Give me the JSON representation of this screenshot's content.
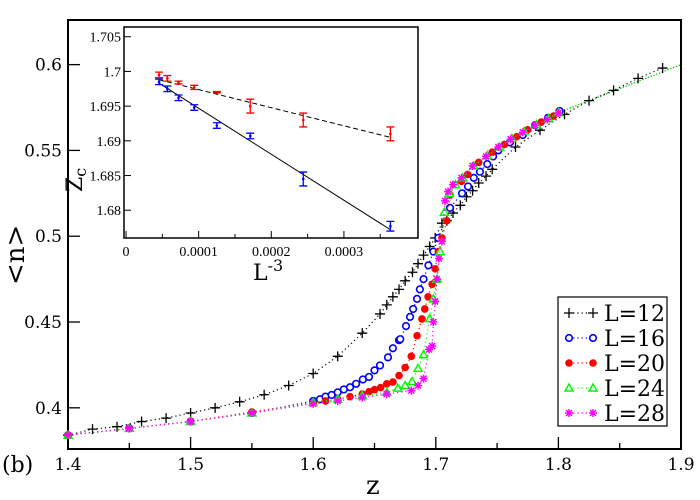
{
  "chart_data": [
    {
      "type": "scatter",
      "panel_label": "(b)",
      "xlabel": "z",
      "ylabel": "<n>",
      "xlim": [
        1.4,
        1.9
      ],
      "ylim": [
        0.376,
        0.626
      ],
      "xticks": [
        "1.4",
        "1.5",
        "1.6",
        "1.7",
        "1.8",
        "1.9"
      ],
      "xtick_values": [
        1.4,
        1.5,
        1.6,
        1.7,
        1.8,
        1.9
      ],
      "yticks": [
        "0.4",
        "0.45",
        "0.5",
        "0.55",
        "0.6"
      ],
      "ytick_values": [
        0.4,
        0.45,
        0.5,
        0.55,
        0.6
      ],
      "legend_position": "bottom-right",
      "series": [
        {
          "name": "L=12",
          "color": "#000000",
          "marker": "plus",
          "x": [
            1.4,
            1.42,
            1.44,
            1.46,
            1.48,
            1.5,
            1.52,
            1.54,
            1.56,
            1.58,
            1.6,
            1.62,
            1.64,
            1.6545,
            1.66,
            1.665,
            1.67,
            1.675,
            1.681,
            1.6855,
            1.69,
            1.695,
            1.6995,
            1.705,
            1.709,
            1.714,
            1.72,
            1.725,
            1.73,
            1.735,
            1.741,
            1.746,
            1.765,
            1.785,
            1.805,
            1.825,
            1.845,
            1.865,
            1.885
          ],
          "y": [
            0.384,
            0.3876,
            0.389,
            0.392,
            0.394,
            0.397,
            0.4,
            0.4035,
            0.4076,
            0.413,
            0.42,
            0.43,
            0.4435,
            0.4547,
            0.46,
            0.4647,
            0.469,
            0.474,
            0.479,
            0.484,
            0.489,
            0.494,
            0.499,
            0.5076,
            0.509,
            0.5135,
            0.518,
            0.523,
            0.5265,
            0.531,
            0.535,
            0.539,
            0.552,
            0.5618,
            0.571,
            0.579,
            0.585,
            0.592,
            0.598
          ]
        },
        {
          "name": "L=16",
          "color": "#0000ff",
          "marker": "circle-open",
          "x": [
            1.4,
            1.45,
            1.5,
            1.55,
            1.6,
            1.6055,
            1.61,
            1.615,
            1.62,
            1.625,
            1.63,
            1.635,
            1.6405,
            1.6455,
            1.65,
            1.6545,
            1.661,
            1.665,
            1.67,
            1.671,
            1.6757,
            1.679,
            1.6815,
            1.6847,
            1.687,
            1.69,
            1.694,
            1.698,
            1.702,
            1.7116,
            1.7214,
            1.7263,
            1.731,
            1.736,
            1.742,
            1.7467,
            1.751,
            1.7605,
            1.771,
            1.781,
            1.7915,
            1.801
          ],
          "y": [
            0.384,
            0.388,
            0.392,
            0.397,
            0.404,
            0.405,
            0.4065,
            0.4075,
            0.409,
            0.4107,
            0.412,
            0.414,
            0.4165,
            0.418,
            0.4218,
            0.4247,
            0.4294,
            0.4347,
            0.4394,
            0.44,
            0.4476,
            0.453,
            0.4576,
            0.4635,
            0.469,
            0.475,
            0.483,
            0.491,
            0.499,
            0.5165,
            0.525,
            0.529,
            0.534,
            0.5376,
            0.542,
            0.5465,
            0.55,
            0.5547,
            0.559,
            0.5647,
            0.569,
            0.573
          ]
        },
        {
          "name": "L=20",
          "color": "#ff0000",
          "marker": "circle-filled",
          "x": [
            1.4,
            1.45,
            1.5,
            1.55,
            1.6,
            1.61,
            1.62,
            1.63,
            1.64,
            1.6455,
            1.65,
            1.655,
            1.66,
            1.665,
            1.67,
            1.675,
            1.68,
            1.6847,
            1.6887,
            1.691,
            1.6937,
            1.697,
            1.6995,
            1.702,
            1.705,
            1.709,
            1.7116,
            1.7156,
            1.721,
            1.726,
            1.735,
            1.746,
            1.756,
            1.766,
            1.775,
            1.786,
            1.796
          ],
          "y": [
            0.384,
            0.388,
            0.392,
            0.3976,
            0.403,
            0.404,
            0.405,
            0.4065,
            0.408,
            0.4094,
            0.4106,
            0.4118,
            0.414,
            0.415,
            0.4188,
            0.4235,
            0.43,
            0.442,
            0.4518,
            0.4576,
            0.4647,
            0.472,
            0.481,
            0.491,
            0.499,
            0.509,
            0.524,
            0.53,
            0.532,
            0.536,
            0.543,
            0.549,
            0.5535,
            0.558,
            0.562,
            0.5665,
            0.57
          ]
        },
        {
          "name": "L=24",
          "color": "#00ff00",
          "marker": "triangle-open",
          "x": [
            1.4,
            1.45,
            1.5,
            1.55,
            1.6,
            1.62,
            1.64,
            1.66,
            1.669,
            1.675,
            1.6806,
            1.6855,
            1.69,
            1.695,
            1.698,
            1.701,
            1.7035,
            1.707,
            1.711,
            1.716,
            1.722,
            1.731,
            1.742,
            1.752,
            1.762,
            1.772,
            1.782,
            1.792,
            1.8
          ],
          "y": [
            0.384,
            0.388,
            0.392,
            0.397,
            0.403,
            0.405,
            0.407,
            0.409,
            0.4115,
            0.413,
            0.4153,
            0.423,
            0.431,
            0.452,
            0.4635,
            0.475,
            0.491,
            0.514,
            0.525,
            0.53,
            0.534,
            0.541,
            0.547,
            0.552,
            0.557,
            0.561,
            0.565,
            0.5685,
            0.572
          ]
        },
        {
          "name": "L=28",
          "color": "#ff00ff",
          "marker": "asterisk",
          "x": [
            1.4,
            1.45,
            1.5,
            1.55,
            1.6,
            1.62,
            1.64,
            1.66,
            1.68,
            1.6855,
            1.69,
            1.6945,
            1.697,
            1.698,
            1.6995,
            1.701,
            1.7025,
            1.705,
            1.7075,
            1.71,
            1.714,
            1.721,
            1.73,
            1.741,
            1.751,
            1.761,
            1.771,
            1.781,
            1.791,
            1.8
          ],
          "y": [
            0.384,
            0.388,
            0.392,
            0.397,
            0.4024,
            0.404,
            0.406,
            0.408,
            0.41,
            0.413,
            0.417,
            0.434,
            0.436,
            0.45,
            0.462,
            0.475,
            0.487,
            0.497,
            0.5206,
            0.526,
            0.53,
            0.534,
            0.541,
            0.5465,
            0.552,
            0.5565,
            0.5606,
            0.5647,
            0.568,
            0.5718
          ]
        }
      ],
      "tail_line": {
        "x": [
          1.8,
          1.9
        ],
        "y": [
          0.572,
          0.6
        ]
      }
    },
    {
      "type": "scatter",
      "location": "inset top-left",
      "xlabel": "L",
      "xlabel_exponent": "-3",
      "ylabel": "Z",
      "ylabel_subscript": "c",
      "xlim": [
        -2.8e-06,
        0.000402
      ],
      "ylim": [
        1.676,
        1.7064
      ],
      "xticks": [
        "0",
        "0.0001",
        "0.0002",
        "0.0003"
      ],
      "xtick_values": [
        0,
        0.0001,
        0.0002,
        0.0003
      ],
      "yticks": [
        "1.68",
        "1.685",
        "1.69",
        "1.695",
        "1.7",
        "1.705"
      ],
      "ytick_values": [
        1.68,
        1.685,
        1.69,
        1.695,
        1.7,
        1.705
      ],
      "series": [
        {
          "name": "red",
          "color": "#ff0000",
          "x": [
            4.55e-05,
            5.69e-05,
            7.23e-05,
            9.39e-05,
            0.000125,
            0.000171,
            0.000244,
            0.000364
          ],
          "y": [
            1.6995,
            1.699,
            1.6984,
            1.6977,
            1.697,
            1.695,
            1.693,
            1.691
          ],
          "err": [
            0.0004,
            0.0004,
            0.0002,
            0.0003,
            0.0001,
            0.001,
            0.001,
            0.001
          ],
          "fit": {
            "style": "dashed",
            "x": [
              4.55e-05,
              0.000364
            ],
            "y": [
              1.6988,
              1.6905
            ]
          }
        },
        {
          "name": "blue",
          "color": "#0000ff",
          "x": [
            4.55e-05,
            5.69e-05,
            7.23e-05,
            9.39e-05,
            0.000125,
            0.000171,
            0.000244,
            0.000364
          ],
          "y": [
            1.6985,
            1.6975,
            1.6962,
            1.6948,
            1.6922,
            1.6907,
            1.6845,
            1.6777
          ],
          "err": [
            0.0004,
            0.0004,
            0.0004,
            0.0004,
            0.0004,
            0.0004,
            0.001,
            0.0007
          ],
          "fit": {
            "style": "solid",
            "x": [
              4.55e-05,
              0.000364
            ],
            "y": [
              1.6983,
              1.6772
            ]
          }
        }
      ]
    }
  ]
}
